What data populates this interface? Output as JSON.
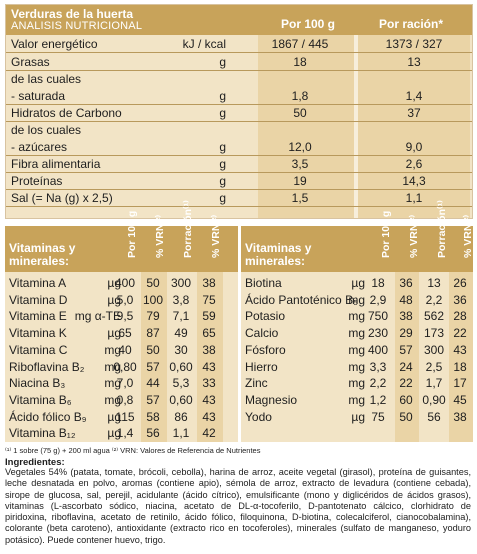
{
  "header": {
    "product": "Verduras de la huerta",
    "subtitle": "ANALISIS NUTRICIONAL",
    "col_100": "Por 100 g",
    "col_racion": "Por ración*"
  },
  "nutrition": [
    {
      "label": "Valor energético",
      "unit": "kJ / kcal",
      "v100": "1867 / 445",
      "vrac": "1373 / 327"
    },
    {
      "label": "Grasas",
      "unit": "g",
      "v100": "18",
      "vrac": "13"
    },
    {
      "label": "de las cuales",
      "unit": "",
      "v100": "",
      "vrac": ""
    },
    {
      "label": "  - saturada",
      "unit": "g",
      "v100": "1,8",
      "vrac": "1,4"
    },
    {
      "label": "Hidratos de Carbono",
      "unit": "g",
      "v100": "50",
      "vrac": "37"
    },
    {
      "label": "de los cuales",
      "unit": "",
      "v100": "",
      "vrac": ""
    },
    {
      "label": "  - azúcares",
      "unit": "g",
      "v100": "12,0",
      "vrac": "9,0"
    },
    {
      "label": "Fibra alimentaria",
      "unit": "g",
      "v100": "3,5",
      "vrac": "2,6"
    },
    {
      "label": "Proteínas",
      "unit": "g",
      "v100": "19",
      "vrac": "14,3"
    },
    {
      "label": "Sal (= Na (g) x 2,5)",
      "unit": "g",
      "v100": "1,5",
      "vrac": "1,1"
    }
  ],
  "vitamins_header": {
    "title_line1": "Vitaminas y",
    "title_line2": "minerales:",
    "col1": "Por 100 g",
    "col2": "% VRN⁽²⁾",
    "col3": "Porración⁽¹⁾",
    "col4": "% VRN⁽²⁾"
  },
  "vitamins_left": [
    {
      "name": "Vitamina A",
      "unit": "µg",
      "a": "400",
      "b": "50",
      "c": "300",
      "d": "38"
    },
    {
      "name": "Vitamina D",
      "unit": "µg",
      "a": "5,0",
      "b": "100",
      "c": "3,8",
      "d": "75"
    },
    {
      "name": "Vitamina E",
      "unit": "mg α-TE",
      "a": "9,5",
      "b": "79",
      "c": "7,1",
      "d": "59"
    },
    {
      "name": "Vitamina K",
      "unit": "µg",
      "a": "65",
      "b": "87",
      "c": "49",
      "d": "65"
    },
    {
      "name": "Vitamina C",
      "unit": "mg",
      "a": "40",
      "b": "50",
      "c": "30",
      "d": "38"
    },
    {
      "name": "Riboflavina B₂",
      "unit": "mg",
      "a": "0,80",
      "b": "57",
      "c": "0,60",
      "d": "43"
    },
    {
      "name": "Niacina B₃",
      "unit": "mg",
      "a": "7,0",
      "b": "44",
      "c": "5,3",
      "d": "33"
    },
    {
      "name": "Vitamina B₆",
      "unit": "mg",
      "a": "0,8",
      "b": "57",
      "c": "0,60",
      "d": "43"
    },
    {
      "name": "Ácido fólico B₉",
      "unit": "µg",
      "a": "115",
      "b": "58",
      "c": "86",
      "d": "43"
    },
    {
      "name": "Vitamina B₁₂",
      "unit": "µg",
      "a": "1,4",
      "b": "56",
      "c": "1,1",
      "d": "42"
    }
  ],
  "vitamins_right": [
    {
      "name": "Biotina",
      "unit": "µg",
      "a": "18",
      "b": "36",
      "c": "13",
      "d": "26"
    },
    {
      "name": "Ácido Pantoténico B₅",
      "unit": "mg",
      "a": "2,9",
      "b": "48",
      "c": "2,2",
      "d": "36"
    },
    {
      "name": "Potasio",
      "unit": "mg",
      "a": "750",
      "b": "38",
      "c": "562",
      "d": "28"
    },
    {
      "name": "Calcio",
      "unit": "mg",
      "a": "230",
      "b": "29",
      "c": "173",
      "d": "22"
    },
    {
      "name": "Fósforo",
      "unit": "mg",
      "a": "400",
      "b": "57",
      "c": "300",
      "d": "43"
    },
    {
      "name": "Hierro",
      "unit": "mg",
      "a": "3,3",
      "b": "24",
      "c": "2,5",
      "d": "18"
    },
    {
      "name": "Zinc",
      "unit": "mg",
      "a": "2,2",
      "b": "22",
      "c": "1,7",
      "d": "17"
    },
    {
      "name": "Magnesio",
      "unit": "mg",
      "a": "1,2",
      "b": "60",
      "c": "0,90",
      "d": "45"
    },
    {
      "name": "Yodo",
      "unit": "µg",
      "a": "75",
      "b": "50",
      "c": "56",
      "d": "38"
    }
  ],
  "footnote": "⁽¹⁾ 1 sobre (75 g) + 200 ml agua  ⁽²⁾ VRN: Valores de Referencia de Nutrientes",
  "ingredients_title": "Ingredientes:",
  "ingredients": "Vegetales 54% (patata, tomate, brócoli, cebolla), harina de arroz, aceite vegetal (girasol), proteína de guisantes, leche desnatada en polvo, aromas (contiene apio), sémola de arroz, extracto de levadura (contiene cebada), sirope de glucosa, sal, perejil, acidulante (ácido cítrico), emulsificante (mono y diglicéridos de ácidos grasos), vitaminas (L-ascorbato sódico, niacina, acetato de DL-α-tocoferilo, D-pantotenato cálcico, clorhidrato de piridoxina, riboflavina, acetato de retinilo, ácido fólico, filoquinona, D-biotina, colecalciferol, cianocobalamina), colorante (beta caroteno), antioxidante (extracto rico en tocoferoles), minerales (sulfato de manganeso, yoduro potásico). Puede contener huevo, trigo."
}
